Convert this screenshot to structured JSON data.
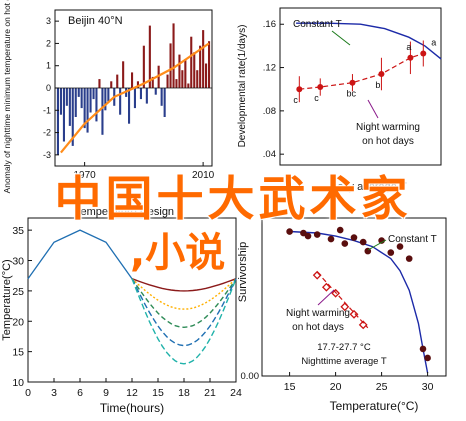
{
  "colors": {
    "bar_positive": "#8b1a1a",
    "bar_negative": "#2a3e8c",
    "trend": "#ff8c1a",
    "annotation": "#1a7a1a",
    "night_text": "#8a1a8a",
    "points": "#cc1414",
    "curve_blue": "#1c2aa8",
    "dark_points": "#5a0e0e",
    "watermark": "#ff6a00"
  },
  "watermark": {
    "line1": "中国十大武术家",
    "line2": ",小说"
  },
  "chart_data": [
    {
      "id": "anomaly",
      "type": "bar",
      "title": "Beijin 40°N",
      "xlabel": "",
      "ylabel": "Anomaly of nighttime minimum temperature on hot days",
      "xlim": [
        1960,
        2013
      ],
      "ylim": [
        -3.5,
        3.5
      ],
      "xticks": [
        {
          "v": 1970,
          "label": "1970"
        },
        {
          "v": 2010,
          "label": "2010"
        }
      ],
      "yticks": [
        {
          "v": 3,
          "label": "3"
        },
        {
          "v": 2,
          "label": "2"
        },
        {
          "v": 1,
          "label": "1"
        },
        {
          "v": 0,
          "label": "0"
        },
        {
          "v": -1,
          "label": "-1"
        },
        {
          "v": -2,
          "label": "-2"
        },
        {
          "v": -3,
          "label": "-3"
        }
      ],
      "x": [
        1961,
        1962,
        1963,
        1964,
        1965,
        1966,
        1967,
        1968,
        1969,
        1970,
        1971,
        1972,
        1973,
        1974,
        1975,
        1976,
        1977,
        1978,
        1979,
        1980,
        1981,
        1982,
        1983,
        1984,
        1985,
        1986,
        1987,
        1988,
        1989,
        1990,
        1991,
        1992,
        1993,
        1994,
        1995,
        1996,
        1997,
        1998,
        1999,
        2000,
        2001,
        2002,
        2003,
        2004,
        2005,
        2006,
        2007,
        2008,
        2009,
        2010,
        2011,
        2012
      ],
      "values": [
        -3.0,
        -1.2,
        -2.4,
        -0.8,
        -1.7,
        -2.6,
        -1.3,
        -0.4,
        -0.9,
        -1.8,
        -2.0,
        -1.1,
        -0.5,
        -1.5,
        0.4,
        -2.1,
        -1.0,
        -0.6,
        0.3,
        -0.8,
        0.6,
        -1.2,
        1.2,
        -0.4,
        -1.6,
        0.7,
        -0.9,
        0.3,
        -0.5,
        1.9,
        -0.7,
        2.8,
        0.5,
        -0.3,
        1.0,
        -0.8,
        -1.3,
        0.6,
        2.0,
        2.9,
        0.4,
        1.5,
        0.8,
        1.3,
        0.2,
        2.3,
        1.6,
        0.8,
        1.9,
        2.6,
        1.1,
        2.1
      ],
      "trend": {
        "x": [
          1962,
          1970,
          1980,
          1990,
          2000,
          2012
        ],
        "y": [
          -2.9,
          -1.6,
          -0.4,
          0.2,
          0.9,
          2.0
        ]
      }
    },
    {
      "id": "rate",
      "type": "line",
      "title": "",
      "xlabel": "Daily average T",
      "ylabel": "Developmental rate(1/days)",
      "xlim": [
        0,
        10
      ],
      "ylim": [
        0.03,
        0.175
      ],
      "yticks": [
        {
          "v": 0.16,
          "label": ".16"
        },
        {
          "v": 0.12,
          "label": ".12"
        },
        {
          "v": 0.08,
          "label": ".08"
        },
        {
          "v": 0.04,
          "label": ".04"
        }
      ],
      "series": [
        {
          "kind": "curve",
          "x": [
            1.0,
            3.0,
            5.0,
            6.5,
            8.0,
            9.0,
            10.0
          ],
          "y": [
            0.161,
            0.161,
            0.16,
            0.156,
            0.148,
            0.14,
            0.128
          ]
        },
        {
          "kind": "points",
          "x": [
            1.2,
            2.5,
            4.5,
            6.3,
            8.1,
            8.9
          ],
          "y": [
            0.1,
            0.102,
            0.106,
            0.114,
            0.129,
            0.133
          ],
          "err": [
            0.012,
            0.008,
            0.008,
            0.015,
            0.015,
            0.012
          ],
          "labels": [
            "c",
            "c",
            "bc",
            "b",
            "a",
            "a"
          ]
        }
      ],
      "annotations": [
        {
          "text": "Constant T"
        },
        {
          "line1": "Night warming",
          "line2": "on hot days"
        }
      ]
    },
    {
      "id": "design",
      "type": "line",
      "title": "Temperature Design",
      "xlabel": "Time(hours)",
      "ylabel": "Temperature(°C)",
      "xlim": [
        0,
        24
      ],
      "ylim": [
        10,
        37
      ],
      "xticks": [
        0,
        3,
        6,
        9,
        12,
        15,
        18,
        21,
        24
      ],
      "yticks": [
        10,
        15,
        20,
        25,
        30,
        35
      ],
      "base": {
        "x": [
          0,
          3,
          6,
          9,
          12
        ],
        "y": [
          27.0,
          33.0,
          35.0,
          33.0,
          27.0
        ]
      },
      "series": [
        {
          "color": "#8b1a1a",
          "dash": "",
          "min": 25.0
        },
        {
          "color": "#ffb000",
          "dash": "2 2",
          "min": 22.0
        },
        {
          "color": "#2e8b57",
          "dash": "5 3",
          "min": 19.0
        },
        {
          "color": "#1f6fb2",
          "dash": "6 3",
          "min": 16.0
        },
        {
          "color": "#20b2aa",
          "dash": "6 3",
          "min": 13.0
        }
      ]
    },
    {
      "id": "survival",
      "type": "scatter",
      "title": "",
      "xlabel": "Temperature(°C)",
      "ylabel": "Survivorship",
      "xlim": [
        12,
        32
      ],
      "ylim": [
        0,
        1.05
      ],
      "xticks": [
        15,
        20,
        25,
        30
      ],
      "yticks": [
        {
          "v": 0,
          "label": "0.00"
        }
      ],
      "series": [
        {
          "kind": "dots",
          "x": [
            15.0,
            16.5,
            17.0,
            18.0,
            19.5,
            20.5,
            21.0,
            22.0,
            23.0,
            23.5,
            25.0,
            26.0,
            27.0,
            28.0,
            29.5,
            30.0
          ],
          "y": [
            0.96,
            0.95,
            0.93,
            0.94,
            0.91,
            0.97,
            0.88,
            0.92,
            0.89,
            0.83,
            0.9,
            0.82,
            0.86,
            0.78,
            0.18,
            0.12
          ]
        },
        {
          "kind": "diamonds",
          "x": [
            18.0,
            19.0,
            20.0,
            21.0,
            22.0,
            23.0
          ],
          "y": [
            0.67,
            0.59,
            0.55,
            0.46,
            0.41,
            0.34
          ]
        },
        {
          "kind": "curve",
          "x": [
            15,
            18,
            20,
            22,
            24,
            26,
            27,
            28,
            29,
            29.5,
            30
          ],
          "y": [
            0.96,
            0.95,
            0.93,
            0.9,
            0.86,
            0.78,
            0.7,
            0.57,
            0.35,
            0.18,
            0.02
          ]
        },
        {
          "kind": "dashed",
          "x": [
            18.0,
            23.5
          ],
          "y": [
            0.69,
            0.32
          ]
        }
      ],
      "annotations": [
        {
          "text": "Constant T"
        },
        {
          "line1": "Night warming",
          "line2": "on hot days"
        },
        {
          "line1": "17.7-27.7 °C",
          "line2": "Nighttime average T"
        }
      ]
    }
  ]
}
